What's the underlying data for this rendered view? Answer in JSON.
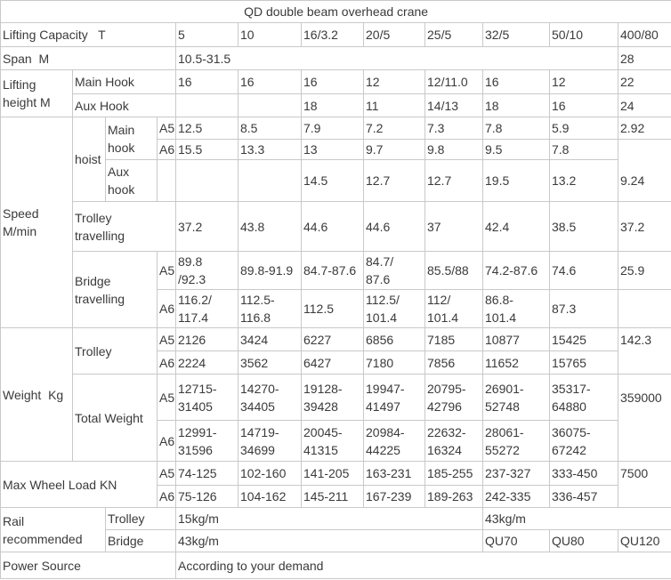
{
  "table": {
    "title": "QD double beam overhead crane",
    "rows": [
      [
        {
          "t": "QD double beam overhead crane",
          "cs": 12,
          "n": "table-title",
          "center": true
        }
      ],
      [
        {
          "t": "Lifting Capacity   T",
          "cs": 4,
          "n": "row-label"
        },
        {
          "t": "5",
          "n": "col-header"
        },
        {
          "t": "10",
          "n": "col-header"
        },
        {
          "t": "16/3.2",
          "n": "col-header"
        },
        {
          "t": "20/5",
          "n": "col-header"
        },
        {
          "t": "25/5",
          "n": "col-header"
        },
        {
          "t": "32/5",
          "n": "col-header"
        },
        {
          "t": "50/10",
          "n": "col-header"
        },
        {
          "t": "400/80",
          "n": "col-header"
        }
      ],
      [
        {
          "t": "Span  M",
          "cs": 4,
          "n": "row-label"
        },
        {
          "t": "10.5-31.5",
          "cs": 7,
          "n": "value-cell"
        },
        {
          "t": "28",
          "n": "value-cell"
        }
      ],
      [
        {
          "t": "Lifting\nheight M",
          "rs": 2,
          "n": "row-label"
        },
        {
          "t": "Main Hook",
          "cs": 3,
          "n": "row-label"
        },
        {
          "t": "16",
          "n": "value-cell"
        },
        {
          "t": "16",
          "n": "value-cell"
        },
        {
          "t": "16",
          "n": "value-cell"
        },
        {
          "t": "12",
          "n": "value-cell"
        },
        {
          "t": "12/11.0",
          "n": "value-cell"
        },
        {
          "t": "16",
          "n": "value-cell"
        },
        {
          "t": "12",
          "n": "value-cell"
        },
        {
          "t": "22",
          "n": "value-cell"
        }
      ],
      [
        {
          "t": "Aux Hook",
          "cs": 3,
          "n": "row-label"
        },
        {
          "t": "",
          "n": "value-cell"
        },
        {
          "t": "",
          "n": "value-cell"
        },
        {
          "t": "18",
          "n": "value-cell"
        },
        {
          "t": "11",
          "n": "value-cell"
        },
        {
          "t": "14/13",
          "n": "value-cell"
        },
        {
          "t": "18",
          "n": "value-cell"
        },
        {
          "t": "16",
          "n": "value-cell"
        },
        {
          "t": "24",
          "n": "value-cell"
        }
      ],
      [
        {
          "t": "Speed\nM/min",
          "rs": 6,
          "n": "row-label"
        },
        {
          "t": "hoist",
          "rs": 3,
          "n": "row-label"
        },
        {
          "t": "Main\nhook",
          "rs": 2,
          "n": "row-label"
        },
        {
          "t": "A5",
          "n": "grade-label"
        },
        {
          "t": "12.5",
          "n": "value-cell"
        },
        {
          "t": "8.5",
          "n": "value-cell"
        },
        {
          "t": "7.9",
          "n": "value-cell"
        },
        {
          "t": "7.2",
          "n": "value-cell"
        },
        {
          "t": "7.3",
          "n": "value-cell"
        },
        {
          "t": "7.8",
          "n": "value-cell"
        },
        {
          "t": "5.9",
          "n": "value-cell"
        },
        {
          "t": "2.92",
          "n": "value-cell"
        }
      ],
      [
        {
          "t": "A6",
          "n": "grade-label"
        },
        {
          "t": "15.5",
          "n": "value-cell"
        },
        {
          "t": "13.3",
          "n": "value-cell"
        },
        {
          "t": "13",
          "n": "value-cell"
        },
        {
          "t": "9.7",
          "n": "value-cell"
        },
        {
          "t": "9.8",
          "n": "value-cell"
        },
        {
          "t": "9.5",
          "n": "value-cell"
        },
        {
          "t": "7.8",
          "n": "value-cell"
        },
        {
          "t": "",
          "n": "value-cell",
          "cls": "bb-hide"
        }
      ],
      [
        {
          "t": "Aux\nhook",
          "n": "row-label"
        },
        {
          "t": "",
          "n": "grade-label"
        },
        {
          "t": "",
          "n": "value-cell"
        },
        {
          "t": "",
          "n": "value-cell"
        },
        {
          "t": "14.5",
          "n": "value-cell"
        },
        {
          "t": "12.7",
          "n": "value-cell"
        },
        {
          "t": "12.7",
          "n": "value-cell"
        },
        {
          "t": "19.5",
          "n": "value-cell"
        },
        {
          "t": "13.2",
          "n": "value-cell"
        },
        {
          "t": "9.24",
          "n": "value-cell"
        }
      ],
      [
        {
          "t": "Trolley\ntravelling",
          "cs": 3,
          "n": "row-label"
        },
        {
          "t": "37.2",
          "n": "value-cell"
        },
        {
          "t": "43.8",
          "n": "value-cell"
        },
        {
          "t": "44.6",
          "n": "value-cell"
        },
        {
          "t": "44.6",
          "n": "value-cell"
        },
        {
          "t": "37",
          "n": "value-cell"
        },
        {
          "t": "42.4",
          "n": "value-cell"
        },
        {
          "t": "38.5",
          "n": "value-cell"
        },
        {
          "t": "37.2",
          "n": "value-cell"
        }
      ],
      [
        {
          "t": "Bridge\ntravelling",
          "cs": 2,
          "rs": 2,
          "n": "row-label"
        },
        {
          "t": "A5",
          "n": "grade-label"
        },
        {
          "t": "89.8\n/92.3",
          "n": "value-cell"
        },
        {
          "t": "89.8-91.9",
          "n": "value-cell"
        },
        {
          "t": "84.7-87.6",
          "n": "value-cell"
        },
        {
          "t": "84.7/\n87.6",
          "n": "value-cell"
        },
        {
          "t": "85.5/88",
          "n": "value-cell"
        },
        {
          "t": "74.2-87.6",
          "n": "value-cell"
        },
        {
          "t": "74.6",
          "n": "value-cell"
        },
        {
          "t": "25.9",
          "n": "value-cell"
        }
      ],
      [
        {
          "t": "A6",
          "n": "grade-label"
        },
        {
          "t": "116.2/\n117.4",
          "n": "value-cell"
        },
        {
          "t": "112.5-\n116.8",
          "n": "value-cell"
        },
        {
          "t": "112.5",
          "n": "value-cell"
        },
        {
          "t": "112.5/\n101.4",
          "n": "value-cell"
        },
        {
          "t": "112/\n101.4",
          "n": "value-cell"
        },
        {
          "t": "86.8-\n101.4",
          "n": "value-cell"
        },
        {
          "t": "87.3",
          "n": "value-cell"
        },
        {
          "t": "",
          "n": "value-cell"
        }
      ],
      [
        {
          "t": "Weight  Kg",
          "rs": 4,
          "n": "row-label"
        },
        {
          "t": "Trolley",
          "cs": 2,
          "rs": 2,
          "n": "row-label"
        },
        {
          "t": "A5",
          "n": "grade-label"
        },
        {
          "t": "2126",
          "n": "value-cell"
        },
        {
          "t": "3424",
          "n": "value-cell"
        },
        {
          "t": "6227",
          "n": "value-cell"
        },
        {
          "t": "6856",
          "n": "value-cell"
        },
        {
          "t": "7185",
          "n": "value-cell"
        },
        {
          "t": "10877",
          "n": "value-cell"
        },
        {
          "t": "15425",
          "n": "value-cell"
        },
        {
          "t": "142.3",
          "n": "value-cell",
          "cls": "bb-hide"
        }
      ],
      [
        {
          "t": "A6",
          "n": "grade-label"
        },
        {
          "t": "2224",
          "n": "value-cell"
        },
        {
          "t": "3562",
          "n": "value-cell"
        },
        {
          "t": "6427",
          "n": "value-cell"
        },
        {
          "t": "7180",
          "n": "value-cell"
        },
        {
          "t": "7856",
          "n": "value-cell"
        },
        {
          "t": "11652",
          "n": "value-cell"
        },
        {
          "t": "15765",
          "n": "value-cell"
        },
        {
          "t": "",
          "n": "value-cell"
        }
      ],
      [
        {
          "t": "Total Weight",
          "cs": 2,
          "rs": 2,
          "n": "row-label"
        },
        {
          "t": "A5",
          "n": "grade-label"
        },
        {
          "t": "12715-\n31405",
          "n": "value-cell"
        },
        {
          "t": "14270-\n34405",
          "n": "value-cell"
        },
        {
          "t": "19128-\n39428",
          "n": "value-cell"
        },
        {
          "t": "19947-\n41497",
          "n": "value-cell"
        },
        {
          "t": "20795-\n42796",
          "n": "value-cell"
        },
        {
          "t": "26901-\n52748",
          "n": "value-cell"
        },
        {
          "t": "35317-\n64880",
          "n": "value-cell"
        },
        {
          "t": "359000",
          "n": "value-cell",
          "cls": "bb-hide"
        }
      ],
      [
        {
          "t": "A6",
          "n": "grade-label"
        },
        {
          "t": "12991-\n31596",
          "n": "value-cell"
        },
        {
          "t": "14719-\n34699",
          "n": "value-cell"
        },
        {
          "t": "20045-\n41315",
          "n": "value-cell"
        },
        {
          "t": "20984-\n44225",
          "n": "value-cell"
        },
        {
          "t": "22632-\n16324",
          "n": "value-cell"
        },
        {
          "t": "28061-\n55272",
          "n": "value-cell"
        },
        {
          "t": "36075-\n67242",
          "n": "value-cell"
        },
        {
          "t": "",
          "n": "value-cell"
        }
      ],
      [
        {
          "t": "Max Wheel Load KN",
          "cs": 3,
          "rs": 2,
          "n": "row-label"
        },
        {
          "t": "A5",
          "n": "grade-label"
        },
        {
          "t": "74-125",
          "n": "value-cell"
        },
        {
          "t": "102-160",
          "n": "value-cell"
        },
        {
          "t": "141-205",
          "n": "value-cell"
        },
        {
          "t": "163-231",
          "n": "value-cell"
        },
        {
          "t": "185-255",
          "n": "value-cell"
        },
        {
          "t": "237-327",
          "n": "value-cell"
        },
        {
          "t": "333-450",
          "n": "value-cell"
        },
        {
          "t": "7500",
          "n": "value-cell",
          "cls": "bb-hide"
        }
      ],
      [
        {
          "t": "A6",
          "n": "grade-label"
        },
        {
          "t": "75-126",
          "n": "value-cell"
        },
        {
          "t": "104-162",
          "n": "value-cell"
        },
        {
          "t": "145-211",
          "n": "value-cell"
        },
        {
          "t": "167-239",
          "n": "value-cell"
        },
        {
          "t": "189-263",
          "n": "value-cell"
        },
        {
          "t": "242-335",
          "n": "value-cell"
        },
        {
          "t": "336-457",
          "n": "value-cell"
        },
        {
          "t": "",
          "n": "value-cell"
        }
      ],
      [
        {
          "t": "Rail\nrecommended",
          "cs": 2,
          "rs": 2,
          "n": "row-label"
        },
        {
          "t": "Trolley",
          "cs": 2,
          "n": "row-label"
        },
        {
          "t": "15kg/m",
          "cs": 5,
          "n": "value-cell"
        },
        {
          "t": "43kg/m",
          "cs": 3,
          "n": "value-cell"
        }
      ],
      [
        {
          "t": "Bridge",
          "cs": 2,
          "n": "row-label"
        },
        {
          "t": "43kg/m",
          "cs": 5,
          "n": "value-cell"
        },
        {
          "t": "QU70",
          "n": "value-cell"
        },
        {
          "t": "QU80",
          "n": "value-cell"
        },
        {
          "t": "QU120",
          "n": "value-cell"
        }
      ],
      [
        {
          "t": "Power Source",
          "cs": 4,
          "n": "row-label"
        },
        {
          "t": "According to your demand",
          "cs": 8,
          "n": "value-cell"
        }
      ]
    ]
  }
}
